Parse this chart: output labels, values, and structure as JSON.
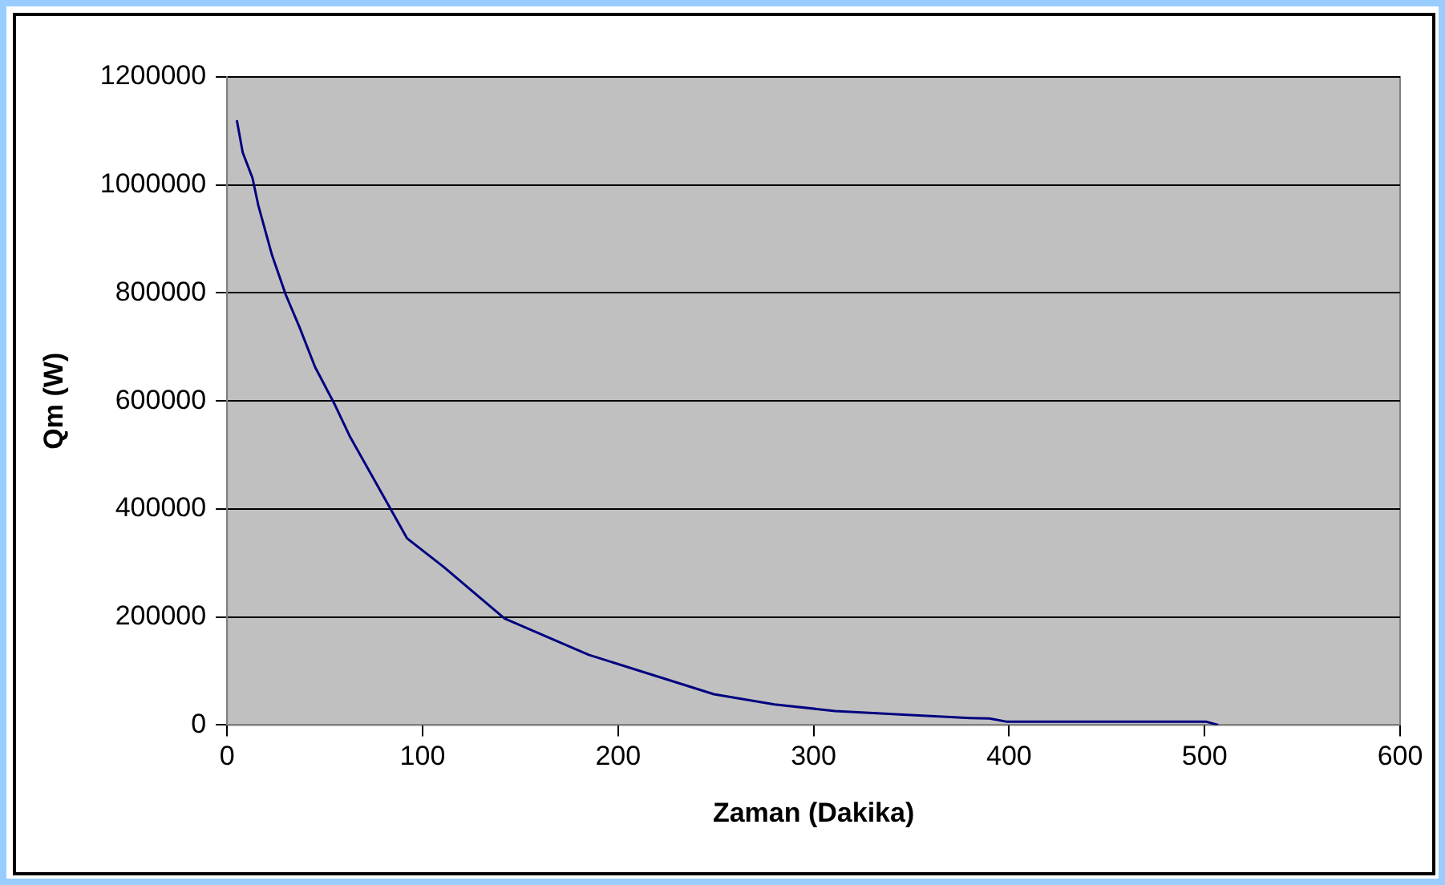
{
  "chart_data": {
    "type": "line",
    "xlabel": "Zaman (Dakika)",
    "ylabel": "Qm (W)",
    "x": [
      5,
      8,
      13,
      16,
      23,
      30,
      37,
      45,
      55,
      63,
      79,
      92,
      111,
      142,
      185,
      249,
      280,
      311,
      346,
      380,
      390,
      399,
      450,
      501,
      507
    ],
    "series": [
      {
        "color": "#000080",
        "values": [
          1120000,
          1060000,
          1013000,
          962000,
          870000,
          797000,
          737000,
          663000,
          594000,
          533000,
          430000,
          346000,
          292000,
          197000,
          130000,
          57000,
          38000,
          26000,
          19000,
          13000,
          12000,
          6000,
          6000,
          6000,
          0
        ]
      }
    ],
    "xlim": [
      0,
      600
    ],
    "xticks": [
      0,
      100,
      200,
      300,
      400,
      500,
      600
    ],
    "ylim": [
      0,
      1200000
    ],
    "yticks": [
      0,
      200000,
      400000,
      600000,
      800000,
      1000000,
      1200000
    ],
    "grid": "y",
    "legend": false,
    "marker": "none",
    "line_style": "solid"
  }
}
